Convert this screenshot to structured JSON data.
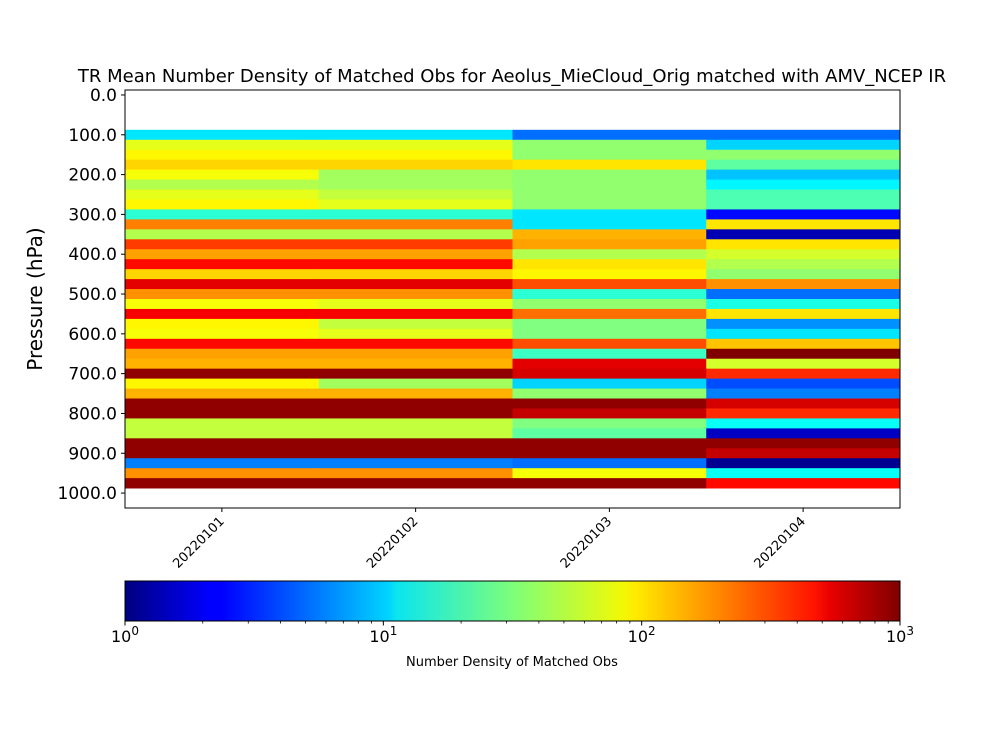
{
  "chart_data": {
    "type": "heatmap",
    "title": "TR Mean Number Density of Matched Obs for Aeolus_MieCloud_Orig matched with AMV_NCEP IR",
    "ylabel": "Pressure (hPa)",
    "xlabel": "",
    "x_categories": [
      "20220101",
      "20220102",
      "20220103",
      "20220104"
    ],
    "y_ticks": [
      "0.0",
      "100.0",
      "200.0",
      "300.0",
      "400.0",
      "500.0",
      "600.0",
      "700.0",
      "800.0",
      "900.0",
      "1000.0"
    ],
    "ylim": [
      1037.5,
      -12.5
    ],
    "y_inverted": true,
    "pressure_levels": [
      100,
      125,
      150,
      175,
      200,
      225,
      250,
      275,
      300,
      325,
      350,
      375,
      400,
      425,
      450,
      475,
      500,
      525,
      550,
      575,
      600,
      625,
      650,
      675,
      700,
      725,
      750,
      775,
      800,
      825,
      850,
      875,
      900,
      925,
      950,
      975
    ],
    "log10_values": [
      [
        1.05,
        1.05,
        0.7,
        0.7
      ],
      [
        1.8,
        1.8,
        1.55,
        1.0
      ],
      [
        1.9,
        1.9,
        1.55,
        1.55
      ],
      [
        2.0,
        2.0,
        1.95,
        1.4
      ],
      [
        1.85,
        1.6,
        1.55,
        0.95
      ],
      [
        1.65,
        1.6,
        1.55,
        1.1
      ],
      [
        1.8,
        1.7,
        1.55,
        1.35
      ],
      [
        1.9,
        1.8,
        1.55,
        1.35
      ],
      [
        1.25,
        1.25,
        1.05,
        0.4
      ],
      [
        2.25,
        2.25,
        1.05,
        1.95
      ],
      [
        1.65,
        1.65,
        2.1,
        0.15
      ],
      [
        2.45,
        2.45,
        2.15,
        1.95
      ],
      [
        2.15,
        2.15,
        1.65,
        1.75
      ],
      [
        2.6,
        2.6,
        1.95,
        1.65
      ],
      [
        2.0,
        2.0,
        1.9,
        1.55
      ],
      [
        2.7,
        2.7,
        2.4,
        2.2
      ],
      [
        2.2,
        2.2,
        1.25,
        0.7
      ],
      [
        1.85,
        1.8,
        1.55,
        1.2
      ],
      [
        2.65,
        2.65,
        2.3,
        1.95
      ],
      [
        1.9,
        1.7,
        1.5,
        0.8
      ],
      [
        1.85,
        1.8,
        1.5,
        1.05
      ],
      [
        2.6,
        2.6,
        2.4,
        2.05
      ],
      [
        2.15,
        2.15,
        1.3,
        3.0
      ],
      [
        2.1,
        2.1,
        2.7,
        1.75
      ],
      [
        2.95,
        2.95,
        2.75,
        2.5
      ],
      [
        1.9,
        1.6,
        1.0,
        0.6
      ],
      [
        2.1,
        2.1,
        1.55,
        0.75
      ],
      [
        2.95,
        2.95,
        2.95,
        2.75
      ],
      [
        2.95,
        2.95,
        2.8,
        2.5
      ],
      [
        1.7,
        1.7,
        1.5,
        1.15
      ],
      [
        1.7,
        1.7,
        1.4,
        0.2
      ],
      [
        2.95,
        2.95,
        2.95,
        2.95
      ],
      [
        2.95,
        2.95,
        2.95,
        2.8
      ],
      [
        0.75,
        0.75,
        0.7,
        0.05
      ],
      [
        2.2,
        2.2,
        1.85,
        1.15
      ],
      [
        2.95,
        2.95,
        2.95,
        2.6
      ]
    ],
    "colorbar": {
      "label": "Number Density of Matched Obs",
      "scale": "log",
      "range": [
        1,
        1000
      ],
      "colormap": "jet",
      "tick_bases": [
        "10",
        "10",
        "10",
        "10"
      ],
      "tick_exponents": [
        "0",
        "1",
        "2",
        "3"
      ]
    }
  }
}
